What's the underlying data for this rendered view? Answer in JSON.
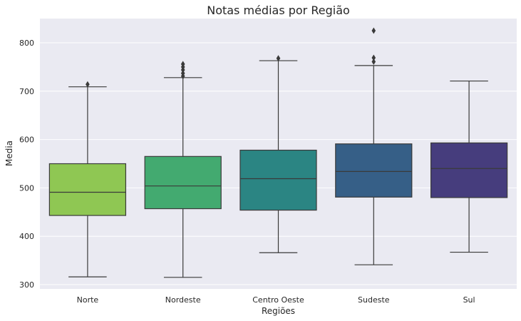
{
  "chart_data": {
    "type": "box",
    "title": "Notas médias por Região",
    "xlabel": "Regiões",
    "ylabel": "Media",
    "ylim": [
      290,
      845
    ],
    "yticks": [
      300,
      400,
      500,
      600,
      700,
      800
    ],
    "grid": true,
    "categories": [
      "Norte",
      "Nordeste",
      "Centro Oeste",
      "Sudeste",
      "Sul"
    ],
    "boxes": [
      {
        "category": "Norte",
        "whisker_low": 316,
        "q1": 443,
        "median": 491,
        "q3": 550,
        "whisker_high": 709,
        "outliers": [
          714
        ],
        "color": "#8fc753"
      },
      {
        "category": "Nordeste",
        "whisker_low": 315,
        "q1": 457,
        "median": 504,
        "q3": 565,
        "whisker_high": 728,
        "outliers": [
          731,
          737,
          744,
          750,
          756
        ],
        "color": "#43aa70"
      },
      {
        "category": "Centro Oeste",
        "whisker_low": 366,
        "q1": 454,
        "median": 519,
        "q3": 578,
        "whisker_high": 763,
        "outliers": [
          768
        ],
        "color": "#2b8583"
      },
      {
        "category": "Sudeste",
        "whisker_low": 341,
        "q1": 481,
        "median": 534,
        "q3": 591,
        "whisker_high": 753,
        "outliers": [
          761,
          769,
          825
        ],
        "color": "#365f87"
      },
      {
        "category": "Sul",
        "whisker_low": 367,
        "q1": 480,
        "median": 540,
        "q3": 593,
        "whisker_high": 721,
        "outliers": [],
        "color": "#463d7d"
      }
    ]
  }
}
